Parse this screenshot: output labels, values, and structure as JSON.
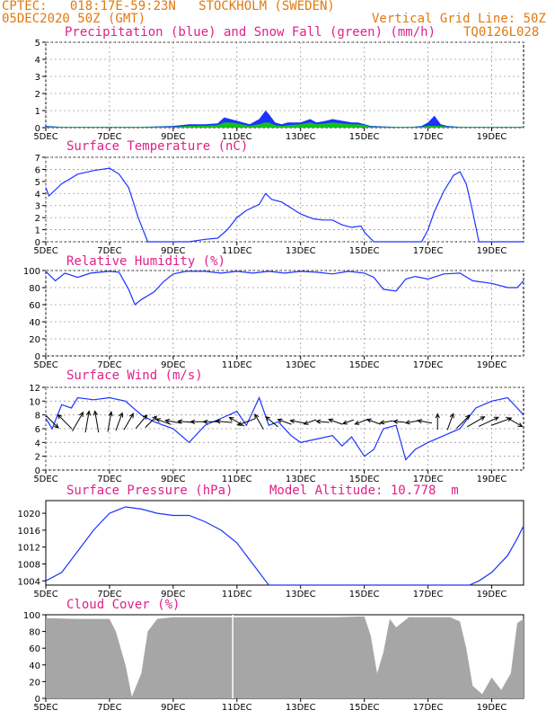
{
  "header": {
    "line1": "CPTEC:   018:17E-59:23N   STOCKHOLM (SWEDEN)",
    "line2": "05DEC2020 50Z (GMT)",
    "grid_note": "Vertical Grid Line: 50Z",
    "code": "TQ0126L028"
  },
  "colors": {
    "header": "#e07a10",
    "title": "#e0208a",
    "line": "#1c33ff",
    "snow": "#12c21a",
    "cloud": "#a6a6a6",
    "wind_arrow": "#000000"
  },
  "x_ticks": [
    "5DEC",
    "7DEC",
    "9DEC",
    "11DEC",
    "13DEC",
    "15DEC",
    "17DEC",
    "19DEC"
  ],
  "chart_data": [
    {
      "type": "area",
      "title": "Precipitation (blue) and Snow Fall (green) (mm/h)",
      "ylim": [
        0,
        5
      ],
      "yticks": [
        "0",
        "1",
        "2",
        "3",
        "4",
        "5"
      ],
      "grid": true,
      "x": [
        "5DEC",
        "5.5",
        "6DEC",
        "7DEC",
        "8DEC",
        "9DEC",
        "9.5",
        "10DEC",
        "10.4",
        "10.6",
        "10.8",
        "11DEC",
        "11.4",
        "11.7",
        "11.9",
        "12DEC",
        "12.2",
        "12.4",
        "12.6",
        "13DEC",
        "13.3",
        "13.5",
        "13.8",
        "14DEC",
        "14.3",
        "14.6",
        "14.8",
        "15DEC",
        "15.2",
        "16DEC",
        "16.5",
        "16.8",
        "17DEC",
        "17.2",
        "17.4",
        "17.6",
        "18DEC",
        "19DEC",
        "20DEC"
      ],
      "series": [
        {
          "name": "Precipitation",
          "values": [
            0.1,
            0.05,
            0.05,
            0.05,
            0.05,
            0.1,
            0.2,
            0.2,
            0.25,
            0.6,
            0.5,
            0.4,
            0.2,
            0.5,
            1.0,
            0.8,
            0.3,
            0.2,
            0.3,
            0.3,
            0.5,
            0.3,
            0.4,
            0.5,
            0.4,
            0.3,
            0.3,
            0.2,
            0.1,
            0.05,
            0.05,
            0.1,
            0.3,
            0.7,
            0.2,
            0.1,
            0.05,
            0.05,
            0.05
          ]
        },
        {
          "name": "Snow Fall",
          "values": [
            0.05,
            0.03,
            0.03,
            0.03,
            0.03,
            0.05,
            0.1,
            0.12,
            0.15,
            0.3,
            0.3,
            0.25,
            0.1,
            0.2,
            0.3,
            0.3,
            0.15,
            0.1,
            0.15,
            0.2,
            0.3,
            0.2,
            0.25,
            0.3,
            0.25,
            0.2,
            0.2,
            0.15,
            0.05,
            0.03,
            0.03,
            0.05,
            0.1,
            0.1,
            0.1,
            0.05,
            0.03,
            0.03,
            0.03
          ]
        }
      ]
    },
    {
      "type": "line",
      "title": "Surface Temperature (nC)",
      "ylim": [
        0,
        7
      ],
      "yticks": [
        "0",
        "1",
        "2",
        "3",
        "4",
        "5",
        "6",
        "7"
      ],
      "grid": true,
      "x": [
        "5DEC",
        "5.1",
        "5.5",
        "6DEC",
        "6.5",
        "7DEC",
        "7.3",
        "7.6",
        "7.9",
        "8.2",
        "9DEC",
        "9.5",
        "10DEC",
        "10.4",
        "10.7",
        "11DEC",
        "11.3",
        "11.7",
        "11.9",
        "12.1",
        "12.4",
        "12.7",
        "13DEC",
        "13.4",
        "13.7",
        "14DEC",
        "14.3",
        "14.6",
        "14.9",
        "15DEC",
        "15.3",
        "16DEC",
        "16.6",
        "16.8",
        "17DEC",
        "17.2",
        "17.5",
        "17.8",
        "18DEC",
        "18.2",
        "18.4",
        "18.6",
        "19DEC",
        "20DEC"
      ],
      "values": [
        4.5,
        3.8,
        4.8,
        5.6,
        5.9,
        6.1,
        5.6,
        4.5,
        2.0,
        0.0,
        0.0,
        0.0,
        0.2,
        0.3,
        1.0,
        2.0,
        2.6,
        3.1,
        4.0,
        3.5,
        3.3,
        2.8,
        2.3,
        1.9,
        1.8,
        1.8,
        1.4,
        1.2,
        1.3,
        0.8,
        0.0,
        0.0,
        0.0,
        0.0,
        1.0,
        2.5,
        4.2,
        5.5,
        5.8,
        4.8,
        2.5,
        0.0,
        0.0,
        0.0
      ]
    },
    {
      "type": "line",
      "title": "Relative Humidity (%)",
      "ylim": [
        0,
        100
      ],
      "yticks": [
        "0",
        "20",
        "40",
        "60",
        "80",
        "100"
      ],
      "grid": true,
      "x": [
        "5DEC",
        "5.3",
        "5.6",
        "6DEC",
        "6.4",
        "7DEC",
        "7.3",
        "7.6",
        "7.8",
        "8DEC",
        "8.4",
        "8.7",
        "9DEC",
        "9.4",
        "10DEC",
        "10.5",
        "11DEC",
        "11.5",
        "12DEC",
        "12.5",
        "13DEC",
        "13.5",
        "14DEC",
        "14.5",
        "15DEC",
        "15.3",
        "15.6",
        "16DEC",
        "16.3",
        "16.6",
        "17DEC",
        "17.5",
        "18DEC",
        "18.4",
        "19DEC",
        "19.5",
        "19.8",
        "20DEC"
      ],
      "values": [
        99,
        88,
        97,
        92,
        97,
        99,
        98,
        78,
        60,
        66,
        75,
        87,
        96,
        99,
        99,
        97,
        99,
        97,
        99,
        97,
        99,
        98,
        96,
        99,
        97,
        92,
        78,
        76,
        90,
        93,
        90,
        96,
        97,
        88,
        85,
        80,
        80,
        88
      ]
    },
    {
      "type": "line",
      "title": "Surface Wind (m/s)",
      "ylim": [
        0,
        12
      ],
      "yticks": [
        "0",
        "2",
        "4",
        "6",
        "8",
        "10",
        "12"
      ],
      "grid": true,
      "x": [
        "5DEC",
        "5.2",
        "5.5",
        "5.8",
        "6DEC",
        "6.5",
        "7DEC",
        "7.5",
        "8DEC",
        "8.4",
        "9DEC",
        "9.5",
        "10DEC",
        "10.5",
        "11DEC",
        "11.3",
        "11.7",
        "12DEC",
        "12.3",
        "12.7",
        "13DEC",
        "13.5",
        "14DEC",
        "14.3",
        "14.6",
        "15DEC",
        "15.3",
        "15.6",
        "16DEC",
        "16.3",
        "16.6",
        "17DEC",
        "17.5",
        "18DEC",
        "18.5",
        "19DEC",
        "19.5",
        "20DEC"
      ],
      "values": [
        7.5,
        6.0,
        9.5,
        9.0,
        10.5,
        10.2,
        10.5,
        10.0,
        8.0,
        7.0,
        6.0,
        4.0,
        6.5,
        7.5,
        8.5,
        6.5,
        10.5,
        6.5,
        7.0,
        5.0,
        4.0,
        4.5,
        5.0,
        3.5,
        4.8,
        2.0,
        3.0,
        6.0,
        6.5,
        1.5,
        3.0,
        4.0,
        5.0,
        6.0,
        9.0,
        10.0,
        10.5,
        8.0
      ]
    },
    {
      "type": "line",
      "title": "Surface Pressure (hPa)",
      "annotation": "Model Altitude: 10.778  m",
      "ylim": [
        1003,
        1023
      ],
      "yticks": [
        "1004",
        "1008",
        "1012",
        "1016",
        "1020"
      ],
      "grid": false,
      "x": [
        "5DEC",
        "5.5",
        "6DEC",
        "6.5",
        "7DEC",
        "7.5",
        "8DEC",
        "8.5",
        "9DEC",
        "9.5",
        "10DEC",
        "10.5",
        "11DEC",
        "11.3",
        "11.6",
        "11.9",
        "12DEC",
        "12.3",
        "18.3",
        "18.6",
        "19DEC",
        "19.5",
        "19.8",
        "20DEC"
      ],
      "values": [
        1004,
        1006,
        1011,
        1016,
        1020,
        1021.5,
        1021,
        1020,
        1019.5,
        1019.5,
        1018,
        1016,
        1013,
        1010,
        1007,
        1004,
        1003,
        1003,
        1003,
        1004,
        1006,
        1010,
        1014,
        1017
      ]
    },
    {
      "type": "area",
      "title": "Cloud Cover (%)",
      "ylim": [
        0,
        100
      ],
      "yticks": [
        "0",
        "20",
        "40",
        "60",
        "80",
        "100"
      ],
      "grid": false,
      "x": [
        "5DEC",
        "6DEC",
        "7DEC",
        "7.2",
        "7.5",
        "7.7",
        "8DEC",
        "8.2",
        "8.5",
        "9DEC",
        "10DEC",
        "11DEC",
        "12DEC",
        "13DEC",
        "14DEC",
        "15DEC",
        "15.2",
        "15.4",
        "15.6",
        "15.8",
        "16DEC",
        "16.4",
        "16.8",
        "17DEC",
        "17.4",
        "17.7",
        "18DEC",
        "18.2",
        "18.4",
        "18.7",
        "19DEC",
        "19.3",
        "19.6",
        "19.8",
        "20DEC"
      ],
      "values": [
        96,
        95,
        95,
        80,
        40,
        2,
        30,
        80,
        95,
        97,
        97,
        97,
        97,
        97,
        97,
        98,
        75,
        30,
        55,
        95,
        85,
        97,
        97,
        97,
        97,
        97,
        92,
        60,
        15,
        5,
        25,
        10,
        30,
        90,
        95
      ]
    },
    {
      "type": "vector",
      "title": "Surface Wind (m/s) arrows",
      "x": [
        "5.2",
        "5.6",
        "6DEC",
        "6.3",
        "6.6",
        "7DEC",
        "7.3",
        "7.6",
        "8DEC",
        "8.3",
        "8.7",
        "9DEC",
        "9.4",
        "9.8",
        "10.2",
        "10.6",
        "11DEC",
        "11.3",
        "11.7",
        "12.1",
        "12.5",
        "12.9",
        "13.3",
        "13.7",
        "14.1",
        "14.5",
        "14.9",
        "15.3",
        "15.7",
        "16.1",
        "16.5",
        "16.9",
        "17.3",
        "17.7",
        "18.1",
        "18.5",
        "18.9",
        "19.3",
        "19.7"
      ],
      "dir_deg": [
        315,
        135,
        60,
        80,
        100,
        80,
        70,
        60,
        50,
        45,
        160,
        170,
        175,
        180,
        180,
        175,
        150,
        200,
        120,
        140,
        160,
        170,
        200,
        175,
        160,
        200,
        200,
        160,
        190,
        175,
        190,
        170,
        90,
        70,
        45,
        30,
        25,
        20,
        330
      ],
      "speed": [
        7,
        9,
        10,
        10,
        10,
        9,
        8,
        8,
        7,
        6,
        6,
        6,
        6,
        6,
        6,
        6,
        7,
        8,
        7,
        6,
        5,
        5,
        4,
        4,
        5,
        3,
        4,
        5,
        4,
        3,
        4,
        5,
        6,
        7,
        8,
        9,
        10,
        10,
        8
      ]
    }
  ]
}
